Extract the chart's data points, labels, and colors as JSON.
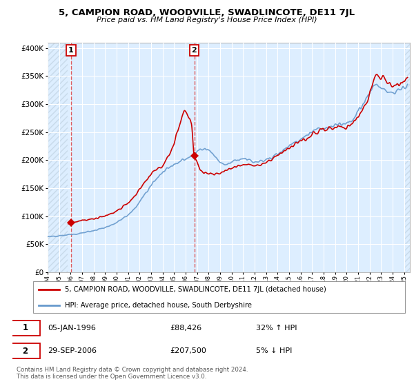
{
  "title": "5, CAMPION ROAD, WOODVILLE, SWADLINCOTE, DE11 7JL",
  "subtitle": "Price paid vs. HM Land Registry's House Price Index (HPI)",
  "legend_line1": "5, CAMPION ROAD, WOODVILLE, SWADLINCOTE, DE11 7JL (detached house)",
  "legend_line2": "HPI: Average price, detached house, South Derbyshire",
  "annotation1_date": "05-JAN-1996",
  "annotation1_price": "£88,426",
  "annotation1_hpi": "32% ↑ HPI",
  "annotation2_date": "29-SEP-2006",
  "annotation2_price": "£207,500",
  "annotation2_hpi": "5% ↓ HPI",
  "footer": "Contains HM Land Registry data © Crown copyright and database right 2024.\nThis data is licensed under the Open Government Licence v3.0.",
  "price_color": "#cc0000",
  "hpi_color": "#6699cc",
  "vline_color": "#dd4444",
  "bg_fill_color": "#ddeeff",
  "hatch_color": "#c8daea",
  "xlim_start": 1994.0,
  "xlim_end": 2025.5,
  "ylim_min": 0,
  "ylim_max": 410000,
  "purchase1_x": 1996.04,
  "purchase1_y": 88426,
  "purchase2_x": 2006.75,
  "purchase2_y": 207500,
  "yticks": [
    0,
    50000,
    100000,
    150000,
    200000,
    250000,
    300000,
    350000,
    400000
  ]
}
